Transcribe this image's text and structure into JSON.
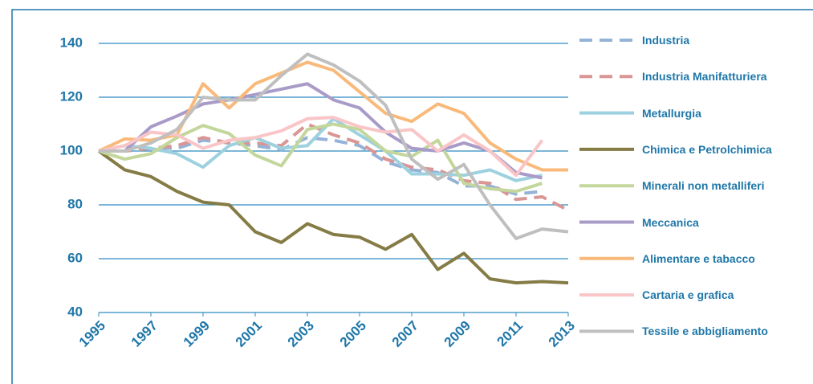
{
  "chart_data": {
    "type": "line",
    "x": [
      1995,
      1996,
      1997,
      1998,
      1999,
      2000,
      2001,
      2002,
      2003,
      2004,
      2005,
      2006,
      2007,
      2008,
      2009,
      2010,
      2011,
      2012,
      2013
    ],
    "xlim": [
      1995,
      2013
    ],
    "xticks": [
      1995,
      1997,
      1999,
      2001,
      2003,
      2005,
      2007,
      2009,
      2011,
      2013
    ],
    "ylim": [
      40,
      140
    ],
    "yticks": [
      40,
      60,
      80,
      100,
      120,
      140
    ],
    "grid": true,
    "legend": "right",
    "series": [
      {
        "name": "Industria",
        "color": "#95b3d7",
        "style": "dashed",
        "values": [
          100,
          100,
          101,
          101,
          104,
          103,
          102,
          100.5,
          105,
          104,
          102,
          96,
          93,
          92,
          87,
          87,
          84,
          85,
          null
        ]
      },
      {
        "name": "Industria Manifatturiera",
        "color": "#d99694",
        "style": "dashed",
        "values": [
          100,
          100,
          101,
          102,
          105,
          103,
          103,
          102,
          110,
          106,
          103,
          97,
          94,
          93,
          89,
          88,
          82,
          83,
          78
        ]
      },
      {
        "name": "Metallurgia",
        "color": "#9dd1df",
        "values": [
          100,
          102,
          101,
          99,
          94,
          102,
          105,
          101,
          102,
          112,
          106,
          100,
          91.5,
          91.5,
          91,
          93,
          89,
          91,
          null
        ]
      },
      {
        "name": "Chimica e Petrolchimica",
        "color": "#847b45",
        "values": [
          100,
          93,
          90.5,
          85,
          81,
          80,
          70,
          66,
          73,
          69,
          68,
          63.5,
          69,
          56,
          62,
          52.5,
          51,
          51.5,
          51
        ]
      },
      {
        "name": "Minerali non metalliferi",
        "color": "#c3d69b",
        "values": [
          100,
          97,
          99,
          105,
          109.5,
          106.5,
          98.5,
          94.5,
          108,
          110,
          108,
          100,
          98,
          104,
          88,
          86,
          85,
          88,
          null
        ]
      },
      {
        "name": "Meccanica",
        "color": "#a99bc8",
        "values": [
          100,
          100,
          109,
          113,
          117.5,
          119,
          121,
          123,
          125,
          119,
          116,
          107,
          101,
          100,
          103,
          100,
          92,
          90,
          null
        ]
      },
      {
        "name": "Alimentare e tabacco",
        "color": "#f9b97a",
        "values": [
          100,
          104.5,
          104,
          106,
          125,
          116,
          125,
          129,
          133,
          130,
          122,
          114,
          111,
          117.5,
          114,
          103,
          97,
          93,
          93
        ]
      },
      {
        "name": "Cartaria e grafica",
        "color": "#f9c5c7",
        "values": [
          100,
          102,
          107,
          106,
          101,
          104,
          105,
          107.5,
          112,
          112.5,
          109,
          107,
          108,
          100,
          106,
          100,
          91,
          104,
          null
        ]
      },
      {
        "name": "Tessile e abbigliamento",
        "color": "#bfbfbf",
        "values": [
          100,
          100,
          103,
          108,
          120,
          119,
          119,
          128,
          136,
          132,
          126,
          117,
          97,
          89.5,
          95,
          80,
          67.5,
          71,
          70
        ]
      }
    ]
  }
}
